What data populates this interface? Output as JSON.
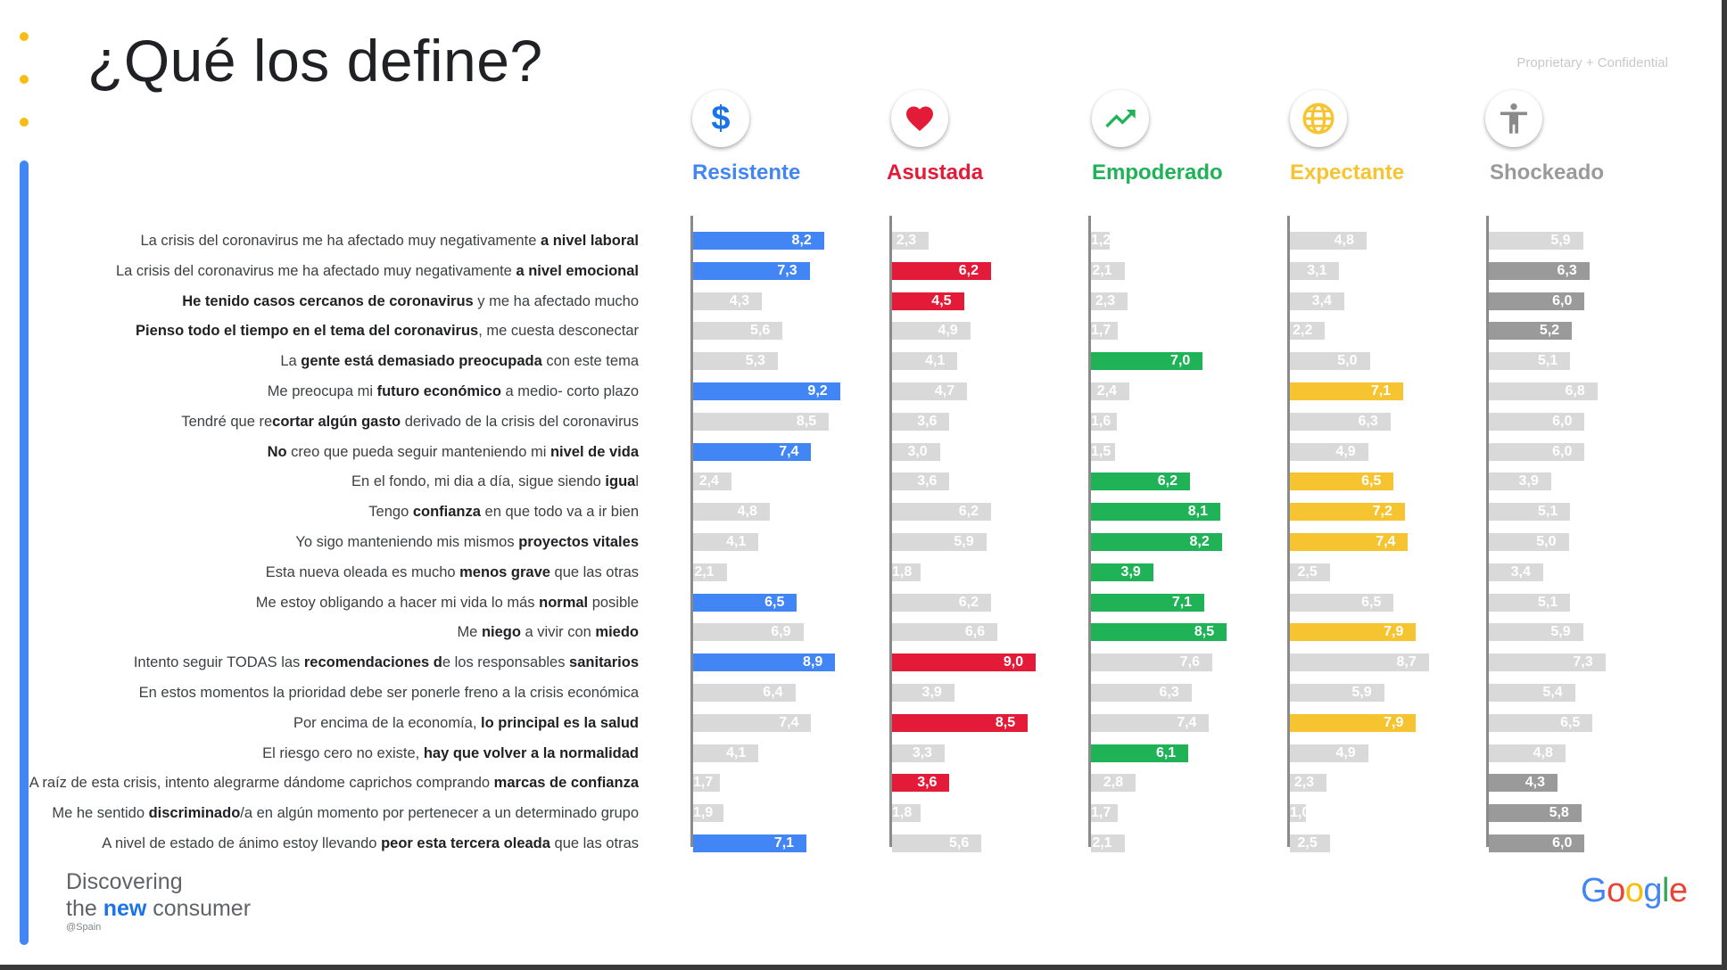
{
  "title": "¿Qué los define?",
  "confidential": "Proprietary + Confidential",
  "branding": {
    "disc_pre": "Disc",
    "disc_o": "o",
    "disc_post": "vering",
    "line2_pre": "the ",
    "line2_new": "new",
    "line2_post": " consumer",
    "region": "@Spain",
    "google": [
      "G",
      "o",
      "o",
      "g",
      "l",
      "e"
    ],
    "google_colors": [
      "#4285f4",
      "#ea4335",
      "#fbbc05",
      "#4285f4",
      "#34a853",
      "#ea4335"
    ]
  },
  "colors": {
    "highlight_default": "#d9d9d9",
    "segments": {
      "Resistente": "#4285f4",
      "Asustada": "#e31b38",
      "Empoderado": "#1fb257",
      "Expectante": "#f7c431",
      "Shockeado": "#9a9a9a"
    }
  },
  "chart_data": {
    "type": "bar",
    "orientation": "horizontal",
    "grouping": "small-multiples",
    "xlim": [
      0,
      10
    ],
    "segments": [
      {
        "name": "Resistente",
        "icon": "dollar-icon",
        "color": "#4285f4"
      },
      {
        "name": "Asustada",
        "icon": "heart-icon",
        "color": "#e31b38"
      },
      {
        "name": "Empoderado",
        "icon": "trending-up-icon",
        "color": "#1fb257"
      },
      {
        "name": "Expectante",
        "icon": "globe-icon",
        "color": "#f7c431"
      },
      {
        "name": "Shockeado",
        "icon": "person-icon",
        "color": "#9a9a9a"
      }
    ],
    "categories": [
      [
        {
          "t": "La crisis del coronavirus me ha afectado muy negativamente ",
          "b": false
        },
        {
          "t": "a nivel laboral",
          "b": true
        }
      ],
      [
        {
          "t": "La crisis del coronavirus me ha afectado muy negativamente ",
          "b": false
        },
        {
          "t": "a nivel emocional",
          "b": true
        }
      ],
      [
        {
          "t": "He tenido casos cercanos de coronavirus",
          "b": true
        },
        {
          "t": " y me ha afectado mucho",
          "b": false
        }
      ],
      [
        {
          "t": "Pienso todo el tiempo en el tema del coronavirus",
          "b": true
        },
        {
          "t": ", me cuesta desconectar",
          "b": false
        }
      ],
      [
        {
          "t": "La ",
          "b": false
        },
        {
          "t": "gente está demasiado preocupada",
          "b": true
        },
        {
          "t": " con este tema",
          "b": false
        }
      ],
      [
        {
          "t": "Me preocupa mi ",
          "b": false
        },
        {
          "t": "futuro económico",
          "b": true
        },
        {
          "t": " a medio- corto plazo",
          "b": false
        }
      ],
      [
        {
          "t": "Tendré que re",
          "b": false
        },
        {
          "t": "cortar algún gasto",
          "b": true
        },
        {
          "t": " derivado de la crisis del coronavirus",
          "b": false
        }
      ],
      [
        {
          "t": "No",
          "b": true
        },
        {
          "t": " creo que pueda seguir manteniendo mi ",
          "b": false
        },
        {
          "t": "nivel de vida",
          "b": true
        }
      ],
      [
        {
          "t": "En el fondo, mi dia a día, sigue siendo ",
          "b": false
        },
        {
          "t": "igua",
          "b": true
        },
        {
          "t": "l",
          "b": false
        }
      ],
      [
        {
          "t": "Tengo ",
          "b": false
        },
        {
          "t": "confianza",
          "b": true
        },
        {
          "t": " en que todo va a ir bien",
          "b": false
        }
      ],
      [
        {
          "t": "Yo sigo manteniendo mis mismos ",
          "b": false
        },
        {
          "t": "proyectos vitales",
          "b": true
        }
      ],
      [
        {
          "t": "Esta nueva oleada es mucho ",
          "b": false
        },
        {
          "t": "menos grave",
          "b": true
        },
        {
          "t": " que las otras",
          "b": false
        }
      ],
      [
        {
          "t": "Me estoy obligando a hacer mi vida lo más ",
          "b": false
        },
        {
          "t": "normal",
          "b": true
        },
        {
          "t": " posible",
          "b": false
        }
      ],
      [
        {
          "t": "Me ",
          "b": false
        },
        {
          "t": "niego",
          "b": true
        },
        {
          "t": " a vivir con ",
          "b": false
        },
        {
          "t": "miedo",
          "b": true
        }
      ],
      [
        {
          "t": "Intento seguir TODAS las ",
          "b": false
        },
        {
          "t": "recomendaciones d",
          "b": true
        },
        {
          "t": "e los responsables ",
          "b": false
        },
        {
          "t": "sanitarios",
          "b": true
        }
      ],
      [
        {
          "t": "En estos momentos la prioridad debe ser ponerle freno a la crisis económica",
          "b": false
        }
      ],
      [
        {
          "t": "Por encima de la economía, ",
          "b": false
        },
        {
          "t": "lo principal es la salud",
          "b": true
        }
      ],
      [
        {
          "t": "El riesgo cero no existe, ",
          "b": false
        },
        {
          "t": "hay que volver a la normalidad",
          "b": true
        }
      ],
      [
        {
          "t": "A raíz de esta crisis, intento alegrarme dándome caprichos comprando ",
          "b": false
        },
        {
          "t": "marcas de confianza",
          "b": true
        }
      ],
      [
        {
          "t": "Me he sentido ",
          "b": false
        },
        {
          "t": "discriminado",
          "b": true
        },
        {
          "t": "/a en algún momento por pertenecer a un determinado grupo",
          "b": false
        }
      ],
      [
        {
          "t": "A nivel de estado de ánimo estoy llevando ",
          "b": false
        },
        {
          "t": "peor esta tercera oleada",
          "b": true
        },
        {
          "t": " que las otras",
          "b": false
        }
      ]
    ],
    "series": [
      {
        "name": "Resistente",
        "values": [
          "8,2",
          "7,3",
          "4,3",
          "5,6",
          "5,3",
          "9,2",
          "8,5",
          "7,4",
          "2,4",
          "4,8",
          "4,1",
          "2,1",
          "6,5",
          "6,9",
          "8,9",
          "6,4",
          "7,4",
          "4,1",
          "1,7",
          "1,9",
          "7,1"
        ],
        "highlighted": [
          true,
          true,
          false,
          false,
          false,
          true,
          false,
          true,
          false,
          false,
          false,
          false,
          true,
          false,
          true,
          false,
          false,
          false,
          false,
          false,
          true
        ]
      },
      {
        "name": "Asustada",
        "values": [
          "2,3",
          "6,2",
          "4,5",
          "4,9",
          "4,1",
          "4,7",
          "3,6",
          "3,0",
          "3,6",
          "6,2",
          "5,9",
          "1,8",
          "6,2",
          "6,6",
          "9,0",
          "3,9",
          "8,5",
          "3,3",
          "3,6",
          "1,8",
          "5,6"
        ],
        "highlighted": [
          false,
          true,
          true,
          false,
          false,
          false,
          false,
          false,
          false,
          false,
          false,
          false,
          false,
          false,
          true,
          false,
          true,
          false,
          true,
          false,
          false
        ]
      },
      {
        "name": "Empoderado",
        "values": [
          "1,2",
          "2,1",
          "2,3",
          "1,7",
          "7,0",
          "2,4",
          "1,6",
          "1,5",
          "6,2",
          "8,1",
          "8,2",
          "3,9",
          "7,1",
          "8,5",
          "7,6",
          "6,3",
          "7,4",
          "6,1",
          "2,8",
          "1,7",
          "2,1"
        ],
        "highlighted": [
          false,
          false,
          false,
          false,
          true,
          false,
          false,
          false,
          true,
          true,
          true,
          true,
          true,
          true,
          false,
          false,
          false,
          true,
          false,
          false,
          false
        ]
      },
      {
        "name": "Expectante",
        "values": [
          "4,8",
          "3,1",
          "3,4",
          "2,2",
          "5,0",
          "7,1",
          "6,3",
          "4,9",
          "6,5",
          "7,2",
          "7,4",
          "2,5",
          "6,5",
          "7,9",
          "8,7",
          "5,9",
          "7,9",
          "4,9",
          "2,3",
          "1,0",
          "2,5"
        ],
        "highlighted": [
          false,
          false,
          false,
          false,
          false,
          true,
          false,
          false,
          true,
          true,
          true,
          false,
          false,
          true,
          false,
          false,
          true,
          false,
          false,
          false,
          false
        ]
      },
      {
        "name": "Shockeado",
        "values": [
          "5,9",
          "6,3",
          "6,0",
          "5,2",
          "5,1",
          "6,8",
          "6,0",
          "6,0",
          "3,9",
          "5,1",
          "5,0",
          "3,4",
          "5,1",
          "5,9",
          "7,3",
          "5,4",
          "6,5",
          "4,8",
          "4,3",
          "5,8",
          "6,0"
        ],
        "highlighted": [
          false,
          true,
          true,
          true,
          false,
          false,
          false,
          false,
          false,
          false,
          false,
          false,
          false,
          false,
          false,
          false,
          false,
          false,
          true,
          true,
          true
        ]
      }
    ]
  }
}
